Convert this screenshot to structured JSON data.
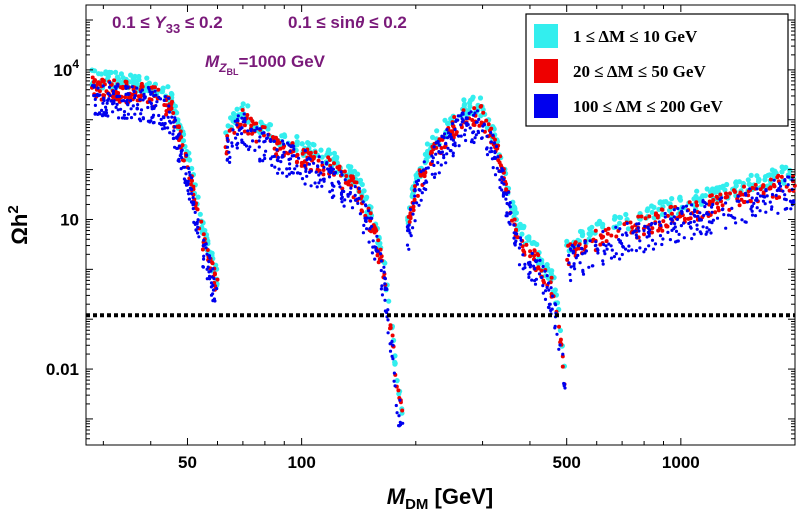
{
  "chart_data": {
    "type": "scatter",
    "x_scale": "log",
    "y_scale": "log",
    "xlim": [
      27,
      2000
    ],
    "ylim": [
      0.0003,
      200000
    ],
    "xlabel": {
      "main": "M",
      "sub": "DM",
      "unit": " [GeV]"
    },
    "ylabel": {
      "main": "Ωh",
      "sup": "2"
    },
    "x_ticks": [
      {
        "value": 50,
        "label": "50"
      },
      {
        "value": 100,
        "label": "100"
      },
      {
        "value": 500,
        "label": "500"
      },
      {
        "value": 1000,
        "label": "1000"
      }
    ],
    "y_ticks": [
      {
        "value": 10000,
        "label_base": "10",
        "label_sup": "4"
      },
      {
        "value": 10,
        "label_base": "10",
        "label_sup": ""
      },
      {
        "value": 0.01,
        "label_base": "0.01",
        "label_sup": ""
      }
    ],
    "annotations": {
      "y33": {
        "left": "0.1 ≤ ",
        "var": "Y",
        "sub": "33",
        "right": " ≤ 0.2"
      },
      "sin": {
        "left": "0.1 ≤ sin",
        "var": "θ",
        "right": " ≤ 0.2"
      },
      "mz": {
        "var": "M",
        "sub": "Z",
        "subsub": "BL",
        "right": "=1000 GeV"
      }
    },
    "reference_line": {
      "y": 0.12,
      "style": "dotted",
      "color": "#000000"
    },
    "series": [
      {
        "name": "1 ≤ ΔM ≤ 10 GeV",
        "color": "#33eeee"
      },
      {
        "name": "20 ≤ ΔM ≤ 50 GeV",
        "color": "#ee0000"
      },
      {
        "name": "100 ≤ ΔM ≤ 200 GeV",
        "color": "#0000ee"
      }
    ],
    "curve_segments": [
      {
        "x": [
          28,
          35,
          40,
          45,
          50,
          55,
          60
        ],
        "y_center": [
          3500,
          2800,
          2500,
          1500,
          100,
          3,
          0.3
        ]
      },
      {
        "x": [
          63,
          66,
          70,
          75,
          85,
          100,
          120,
          140,
          155,
          165,
          172,
          180,
          185
        ],
        "y_center": [
          200,
          600,
          800,
          500,
          250,
          150,
          80,
          30,
          5,
          0.6,
          0.05,
          0.002,
          0.0008
        ]
      },
      {
        "x": [
          190,
          200,
          215,
          240,
          260,
          275,
          300,
          330,
          370,
          420,
          460,
          480,
          495
        ],
        "y_center": [
          5,
          30,
          120,
          350,
          700,
          1000,
          900,
          150,
          4,
          1,
          0.3,
          0.05,
          0.004
        ]
      },
      {
        "x": [
          500,
          600,
          800,
          1000,
          1300,
          1600,
          2000
        ],
        "y_center": [
          1.5,
          3,
          6,
          10,
          18,
          28,
          45
        ]
      }
    ]
  }
}
